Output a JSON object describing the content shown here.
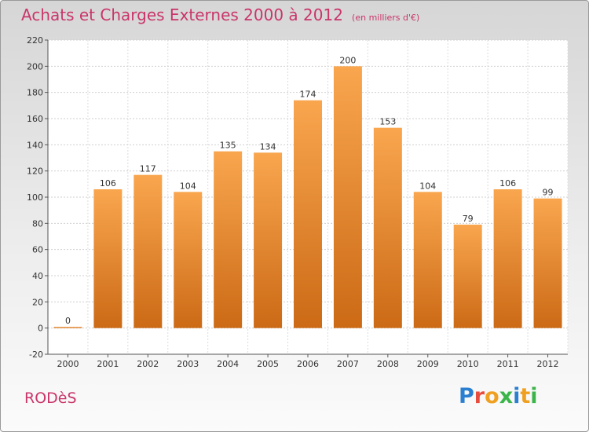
{
  "header": {
    "title": "Achats et Charges Externes 2000 à 2012",
    "unit": "(en milliers d'€)"
  },
  "footer": {
    "city": "RODèS",
    "logo": "Proxiti"
  },
  "colors": {
    "title": "#c9356a",
    "bar_top": "#f9a64f",
    "bar_bottom": "#cc6a16"
  },
  "chart_data": {
    "type": "bar",
    "title": "Achats et Charges Externes 2000 à 2012",
    "subtitle": "(en milliers d'€)",
    "categories": [
      "2000",
      "2001",
      "2002",
      "2003",
      "2004",
      "2005",
      "2006",
      "2007",
      "2008",
      "2009",
      "2010",
      "2011",
      "2012"
    ],
    "values": [
      0,
      106,
      117,
      104,
      135,
      134,
      174,
      200,
      153,
      104,
      79,
      106,
      99
    ],
    "ylim": [
      -20,
      220
    ],
    "yticks": [
      -20,
      0,
      20,
      40,
      60,
      80,
      100,
      120,
      140,
      160,
      180,
      200,
      220
    ],
    "grid": true,
    "legend": "none"
  }
}
